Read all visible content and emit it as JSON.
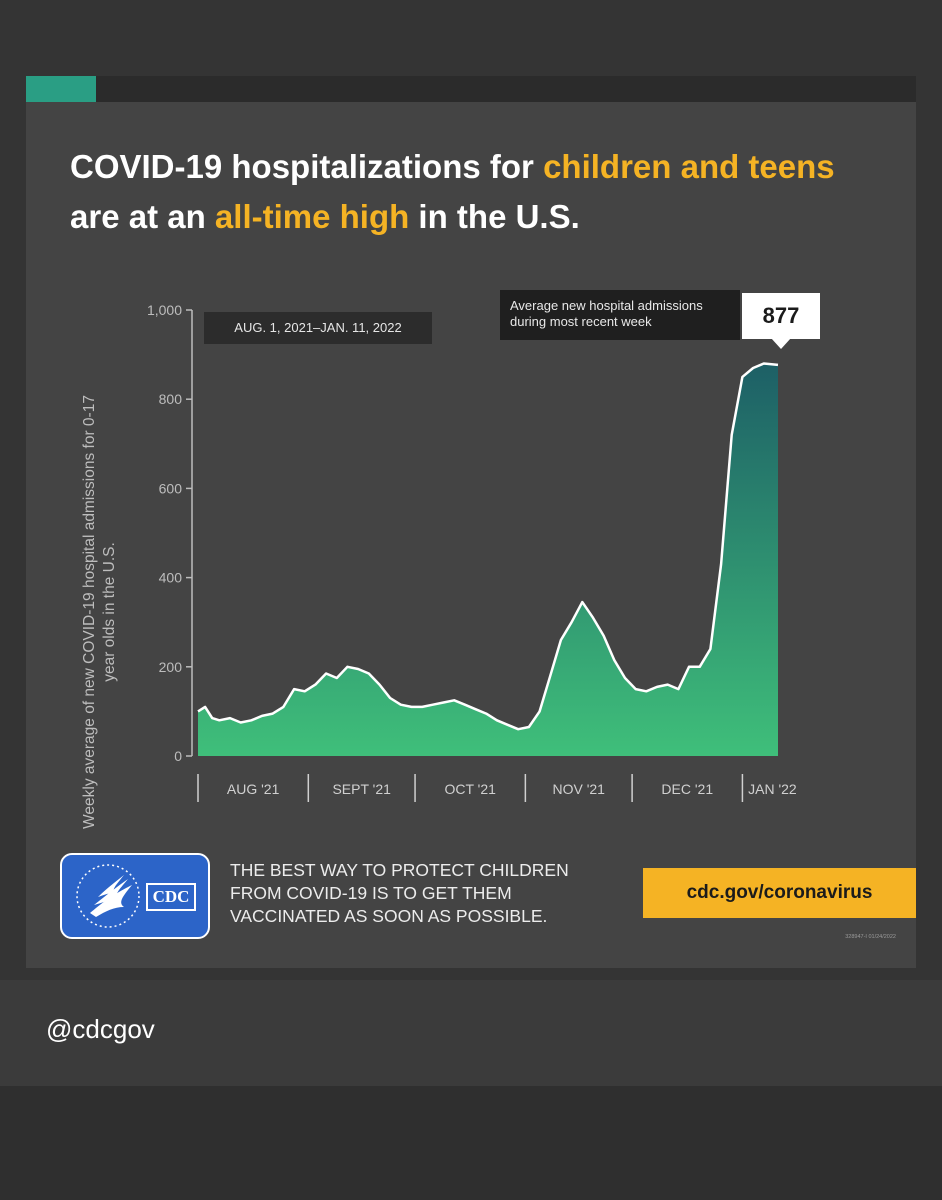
{
  "headline": {
    "part1": "COVID-19 hospitalizations for ",
    "highlight1": "children and teens",
    "part2": " are at an ",
    "highlight2": "all-time high",
    "part3": " in the U.S."
  },
  "colors": {
    "accent_yellow": "#f5b324",
    "accent_teal": "#2a9e84",
    "area_top": "#1d5f66",
    "area_bottom": "#3fbf7a",
    "logo_blue": "#2c64c8"
  },
  "chart_data": {
    "type": "area",
    "date_range_label": "AUG. 1, 2021–JAN. 11, 2022",
    "ylabel": "Weekly average of new COVID-19 hospital admissions for 0-17 year olds in the U.S.",
    "ylim": [
      0,
      1000
    ],
    "y_ticks": [
      0,
      200,
      400,
      600,
      800,
      1000
    ],
    "y_tick_labels": [
      "0",
      "200",
      "400",
      "600",
      "800",
      "1,000"
    ],
    "x_range": [
      "2021-08-01",
      "2022-01-11"
    ],
    "x_tick_labels": [
      "AUG '21",
      "SEPT '21",
      "OCT '21",
      "NOV '21",
      "DEC '21",
      "JAN '22"
    ],
    "month_starts": [
      "2021-08-01",
      "2021-09-01",
      "2021-10-01",
      "2021-11-01",
      "2021-12-01",
      "2022-01-01"
    ],
    "grid": false,
    "callout": {
      "label_line1": "Average new hospital admissions",
      "label_line2": "during most recent week",
      "value": "877"
    },
    "series": [
      {
        "x": [
          "2021-08-01",
          "2021-08-03",
          "2021-08-05",
          "2021-08-07",
          "2021-08-10",
          "2021-08-13",
          "2021-08-16",
          "2021-08-19",
          "2021-08-22",
          "2021-08-25",
          "2021-08-28",
          "2021-08-31",
          "2021-09-03",
          "2021-09-06",
          "2021-09-09",
          "2021-09-12",
          "2021-09-15",
          "2021-09-18",
          "2021-09-21",
          "2021-09-24",
          "2021-09-27",
          "2021-09-30",
          "2021-10-03",
          "2021-10-06",
          "2021-10-09",
          "2021-10-12",
          "2021-10-15",
          "2021-10-18",
          "2021-10-21",
          "2021-10-24",
          "2021-10-27",
          "2021-10-30",
          "2021-11-02",
          "2021-11-05",
          "2021-11-08",
          "2021-11-11",
          "2021-11-14",
          "2021-11-17",
          "2021-11-20",
          "2021-11-23",
          "2021-11-26",
          "2021-11-29",
          "2021-12-02",
          "2021-12-05",
          "2021-12-08",
          "2021-12-11",
          "2021-12-14",
          "2021-12-17",
          "2021-12-20",
          "2021-12-23",
          "2021-12-26",
          "2021-12-29",
          "2022-01-01",
          "2022-01-04",
          "2022-01-07",
          "2022-01-11"
        ],
        "values": [
          100,
          110,
          85,
          80,
          85,
          75,
          80,
          90,
          95,
          110,
          150,
          145,
          160,
          185,
          175,
          200,
          195,
          185,
          160,
          130,
          115,
          110,
          110,
          115,
          120,
          125,
          115,
          105,
          95,
          80,
          70,
          60,
          65,
          100,
          180,
          260,
          300,
          345,
          310,
          270,
          215,
          175,
          150,
          145,
          155,
          160,
          150,
          200,
          200,
          240,
          430,
          720,
          850,
          870,
          880,
          877
        ]
      }
    ]
  },
  "footer": {
    "logo_label": "CDC",
    "message_line1": "THE BEST WAY TO PROTECT CHILDREN",
    "message_line2": "FROM COVID-19 IS TO GET THEM",
    "message_line3": "VACCINATED AS SOON AS POSSIBLE.",
    "url": "cdc.gov/coronavirus",
    "doc_id": "328947-I 01/24/2022"
  },
  "handle": "@cdcgov"
}
